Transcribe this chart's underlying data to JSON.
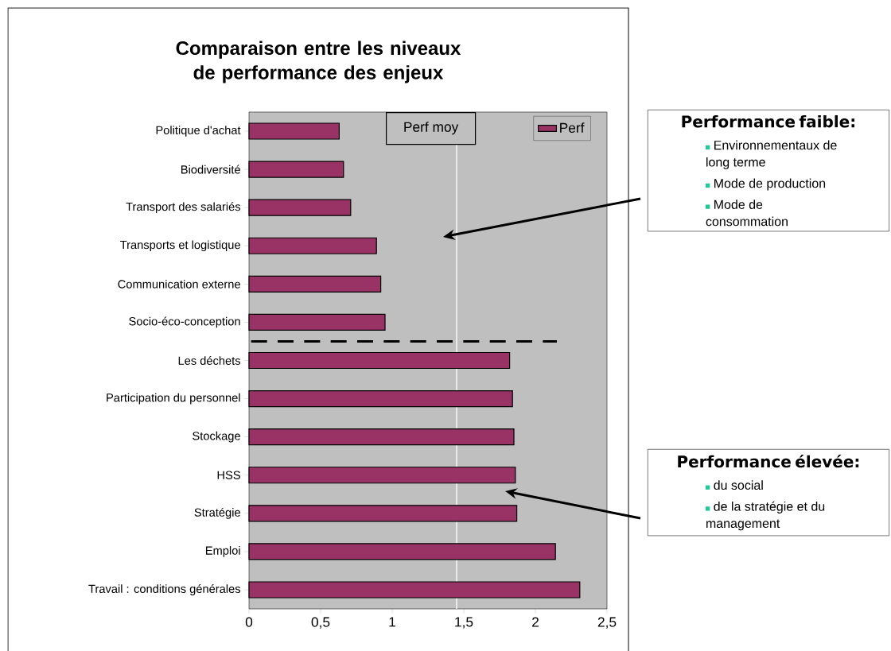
{
  "chart_data": {
    "type": "bar",
    "orientation": "horizontal",
    "title": "Comparaison entre les niveaux de performance des enjeux",
    "categories": [
      "Politique d'achat",
      "Biodiversité",
      "Transport des salariés",
      "Transports et logistique",
      "Communication externe",
      "Socio-éco-conception",
      "Les déchets",
      "Participation du personnel",
      "Stockage",
      "HSS",
      "Stratégie",
      "Emploi",
      "Travail : conditions générales"
    ],
    "series": [
      {
        "name": "Perf",
        "color": "#993366",
        "values": [
          0.63,
          0.66,
          0.71,
          0.89,
          0.92,
          0.95,
          1.82,
          1.84,
          1.85,
          1.86,
          1.87,
          2.14,
          2.31
        ]
      }
    ],
    "xlim": [
      0,
      2.5
    ],
    "xticks": [
      0,
      {
        "value": 0.5,
        "label": "0,5"
      },
      1,
      {
        "value": 1.5,
        "label": "1,5"
      },
      2,
      {
        "value": 2.5,
        "label": "2,5"
      }
    ],
    "ref_lines": [
      {
        "axis": "x",
        "value": 1.45,
        "label": "Perf moy",
        "color": "#ffffff"
      }
    ],
    "legend": "top right",
    "annotations": [
      "Performance faible:",
      "Environnementaux de long terme",
      "Mode de production",
      "Mode de consommation",
      "Performance élevée:",
      "du social",
      "de la stratégie et du management"
    ]
  }
}
